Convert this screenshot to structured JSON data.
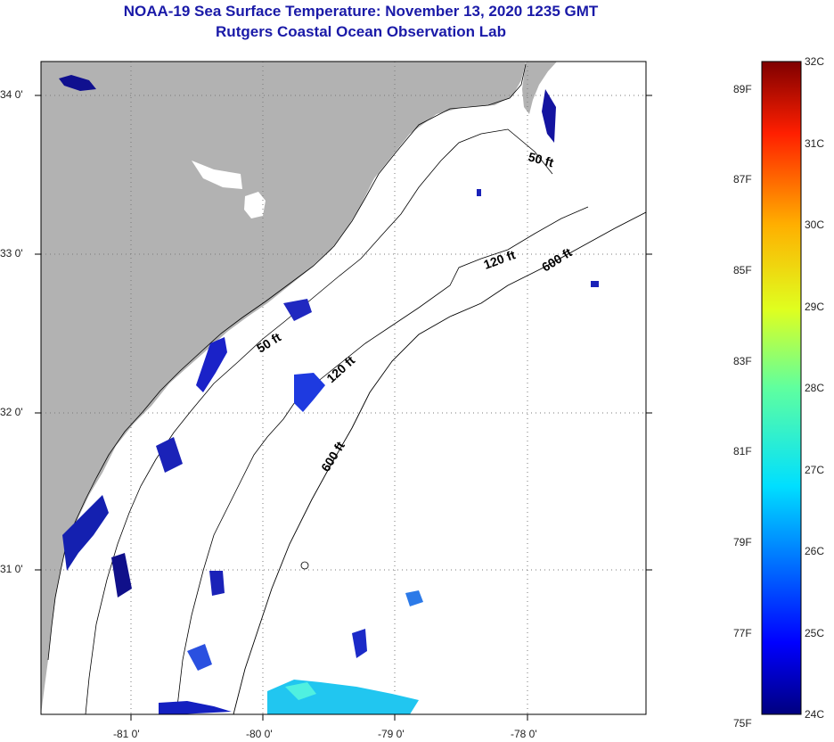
{
  "title": "NOAA-19 Sea Surface Temperature:  November 13, 2020 1235 GMT",
  "subtitle": "Rutgers Coastal Ocean Observation Lab",
  "map": {
    "land_color": "#b2b2b2",
    "lon_labels": [
      "-81 0'",
      "-80 0'",
      "-79 0'",
      "-78 0'"
    ],
    "lat_labels": [
      "34 0'",
      "33 0'",
      "32 0'",
      "31 0'"
    ],
    "contours": {
      "c50_a": "50 ft",
      "c50_b": "50 ft",
      "c120_a": "120 ft",
      "c120_b": "120 ft",
      "c600_a": "600 ft",
      "c600_b": "600 ft"
    }
  },
  "colorbar": {
    "fahrenheit": [
      "75F",
      "77F",
      "79F",
      "81F",
      "83F",
      "85F",
      "87F",
      "89F"
    ],
    "celsius": [
      "24C",
      "25C",
      "26C",
      "27C",
      "28C",
      "29C",
      "30C",
      "31C",
      "32C"
    ],
    "range_c": [
      24,
      32
    ]
  }
}
